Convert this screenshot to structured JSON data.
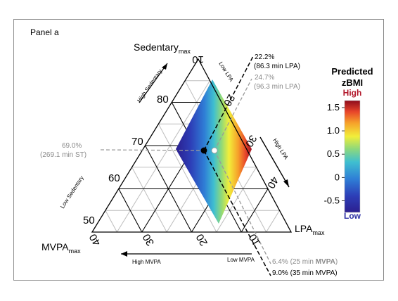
{
  "panel_label": "Panel a",
  "colors": {
    "black_line": "#000000",
    "gray_line": "#9a9a9a",
    "grid_gray": "#bdbdbd",
    "gray_text": "#8a8a8a",
    "high_label": "#b2182b",
    "low_label": "#2c2fa3"
  },
  "chart_data": {
    "type": "ternary",
    "axes": {
      "sedentary": {
        "label_main": "Sedentary",
        "label_sub": "max",
        "ticks": [
          "10",
          "80",
          "70",
          "60",
          "50"
        ],
        "ticks_note": "drawn tick labels shown on left edge are sedentary %: 80, 70, 60, 50; top vertex label 10",
        "high_arrow": "High Sedentary",
        "low_arrow": "Low Sedentary"
      },
      "lpa": {
        "label_main": "LPA",
        "label_sub": "max",
        "ticks": [
          "10",
          "20",
          "30",
          "40"
        ],
        "high_arrow": "High LPA",
        "low_arrow": "Low LPA"
      },
      "mvpa": {
        "label_main": "MVPA",
        "label_sub": "max",
        "ticks": [
          "40",
          "30",
          "20",
          "10"
        ],
        "high_arrow": "High MVPA",
        "low_arrow": "Low MVPA"
      }
    },
    "markers": [
      {
        "name": "black",
        "color": "#000000",
        "sedentary": 69.0,
        "lpa": 22.2,
        "mvpa": 9.0
      },
      {
        "name": "white",
        "color": "#ffffff",
        "sedentary": 68.9,
        "lpa": 24.7,
        "mvpa": 6.4
      }
    ],
    "annotations": {
      "sed_line1": "69.0%",
      "sed_line2": "(269.1 min ST)",
      "lpa_black_line1": "22.2%",
      "lpa_black_line2": "(86.3 min LPA)",
      "lpa_gray_line1": "24.7%",
      "lpa_gray_line2": "(96.3 min LPA)",
      "mvpa_gray_pre": "6.4% (25 min ",
      "mvpa_gray_bold": "MVPA",
      "mvpa_gray_post": ")",
      "mvpa_black": "9.0% (35 min MVPA)"
    },
    "colorbar": {
      "title_line1": "Predicted",
      "title_line2": "zBMI",
      "high_label": "High",
      "low_label": "Low",
      "ticks": [
        1.5,
        1.0,
        0.5,
        0,
        -0.5
      ],
      "tick_labels": [
        "1.5",
        "1.0",
        "0.5",
        "0",
        "-0.5"
      ],
      "range": [
        -0.75,
        1.65
      ]
    }
  }
}
